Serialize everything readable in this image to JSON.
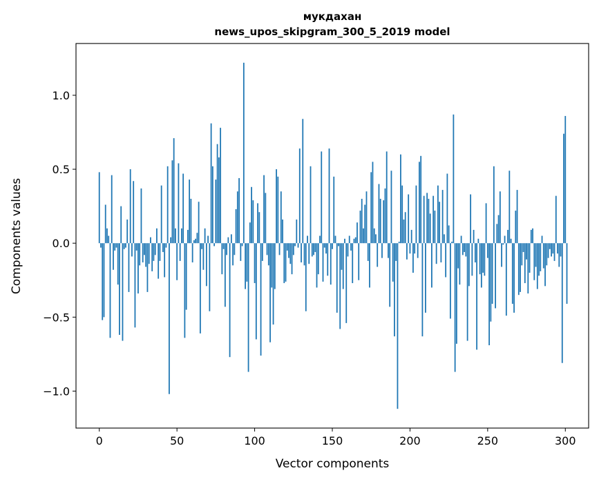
{
  "chart_data": {
    "type": "bar",
    "title_line1": "мукдахан",
    "title_line2": "news_upos_skipgram_300_5_2019 model",
    "xlabel": "Vector components",
    "ylabel": "Components values",
    "xlim": [
      -15,
      315
    ],
    "ylim": [
      -1.25,
      1.35
    ],
    "xticks": [
      0,
      50,
      100,
      150,
      200,
      250,
      300
    ],
    "xtick_labels": [
      "0",
      "50",
      "100",
      "150",
      "200",
      "250",
      "300"
    ],
    "yticks": [
      -1.0,
      -0.5,
      0.0,
      0.5,
      1.0
    ],
    "ytick_labels": [
      "−1.0",
      "−0.5",
      "0.0",
      "0.5",
      "1.0"
    ],
    "bar_color": "#1f77b4",
    "grid": false,
    "values": [
      0.48,
      -0.03,
      -0.52,
      -0.5,
      0.26,
      0.1,
      0.05,
      -0.64,
      0.46,
      -0.18,
      -0.05,
      -0.03,
      -0.28,
      -0.62,
      0.25,
      -0.66,
      -0.04,
      -0.03,
      0.16,
      -0.33,
      0.5,
      -0.09,
      0.42,
      -0.57,
      -0.05,
      -0.34,
      -0.15,
      0.37,
      -0.13,
      -0.08,
      -0.16,
      -0.33,
      -0.14,
      0.04,
      -0.19,
      -0.12,
      -0.08,
      0.1,
      -0.24,
      -0.12,
      0.39,
      -0.06,
      -0.23,
      -0.03,
      0.52,
      -1.02,
      0.04,
      0.56,
      0.71,
      0.1,
      -0.25,
      0.54,
      -0.12,
      0.1,
      0.47,
      -0.64,
      -0.45,
      0.09,
      0.43,
      0.3,
      -0.13,
      0.02,
      0.03,
      0.07,
      0.28,
      -0.61,
      -0.04,
      -0.18,
      0.1,
      -0.29,
      0.05,
      -0.46,
      0.81,
      0.52,
      -0.02,
      0.43,
      0.67,
      0.58,
      0.78,
      -0.21,
      -0.04,
      -0.43,
      -0.08,
      0.04,
      -0.77,
      0.06,
      -0.15,
      -0.08,
      0.23,
      0.35,
      0.44,
      -0.12,
      -0.02,
      1.22,
      -0.31,
      -0.26,
      -0.87,
      0.14,
      0.38,
      0.29,
      -0.27,
      -0.65,
      0.27,
      0.21,
      -0.76,
      -0.12,
      0.46,
      0.34,
      -0.08,
      -0.15,
      -0.67,
      -0.3,
      -0.55,
      -0.31,
      0.5,
      0.45,
      -0.08,
      0.35,
      0.16,
      -0.27,
      -0.26,
      -0.05,
      -0.1,
      -0.14,
      -0.21,
      -0.08,
      -0.02,
      0.16,
      -0.03,
      0.64,
      -0.13,
      0.84,
      -0.15,
      -0.46,
      0.05,
      -0.14,
      0.52,
      -0.09,
      -0.08,
      -0.06,
      -0.3,
      -0.21,
      0.05,
      0.62,
      -0.26,
      -0.03,
      -0.07,
      -0.22,
      0.64,
      -0.28,
      -0.04,
      0.45,
      0.05,
      -0.47,
      -0.02,
      -0.58,
      -0.18,
      -0.31,
      0.03,
      -0.54,
      -0.09,
      0.05,
      -0.05,
      -0.27,
      0.03,
      0.04,
      0.14,
      -0.25,
      0.22,
      0.3,
      0.1,
      0.26,
      0.35,
      -0.12,
      -0.3,
      0.48,
      0.55,
      0.1,
      0.06,
      -0.16,
      0.4,
      0.3,
      -0.1,
      0.29,
      0.37,
      0.62,
      -0.1,
      -0.43,
      0.49,
      -0.26,
      -0.63,
      -0.12,
      -1.12,
      0.01,
      0.6,
      0.39,
      0.16,
      0.21,
      -0.11,
      0.33,
      -0.07,
      0.09,
      -0.2,
      -0.07,
      0.39,
      -0.1,
      0.55,
      0.59,
      -0.63,
      0.32,
      -0.47,
      0.34,
      0.3,
      0.2,
      -0.3,
      0.32,
      0.22,
      -0.14,
      0.39,
      0.28,
      -0.13,
      0.36,
      0.06,
      -0.23,
      0.47,
      0.12,
      -0.51,
      0.01,
      0.87,
      -0.87,
      -0.68,
      -0.17,
      -0.28,
      0.05,
      -0.08,
      -0.06,
      -0.09,
      -0.66,
      -0.29,
      0.33,
      -0.22,
      0.09,
      -0.13,
      -0.72,
      0.03,
      -0.21,
      -0.3,
      -0.2,
      -0.22,
      0.27,
      -0.1,
      -0.69,
      -0.53,
      -0.41,
      0.52,
      -0.44,
      0.13,
      0.19,
      0.35,
      -0.16,
      -0.01,
      0.05,
      -0.49,
      0.09,
      0.49,
      0.03,
      -0.41,
      -0.47,
      0.22,
      0.36,
      -0.35,
      -0.33,
      -0.15,
      -0.06,
      -0.27,
      -0.11,
      -0.34,
      -0.2,
      0.09,
      0.1,
      -0.25,
      -0.16,
      -0.31,
      -0.22,
      -0.19,
      0.05,
      -0.17,
      -0.29,
      -0.15,
      -0.1,
      -0.04,
      -0.09,
      -0.07,
      -0.12,
      0.32,
      -0.07,
      -0.16,
      -0.09,
      -0.81,
      0.74,
      0.86,
      -0.41
    ]
  }
}
